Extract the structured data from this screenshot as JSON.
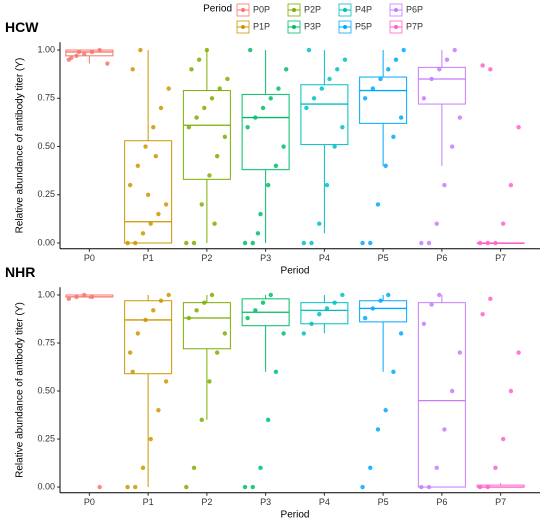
{
  "legend": {
    "title": "Period",
    "labels": [
      "P0P",
      "P1P",
      "P2P",
      "P3P",
      "P4P",
      "P5P",
      "P6P",
      "P7P"
    ],
    "colors": [
      "#F8766D",
      "#CD9600",
      "#7CAE00",
      "#00BE67",
      "#00BFC4",
      "#00A9FF",
      "#C77CFF",
      "#FF61CC"
    ]
  },
  "chart_data": [
    {
      "type": "box",
      "title": "HCW",
      "x_label": "Period",
      "y_label": "Relative abundance of antibody titer (Y)",
      "categories": [
        "P0",
        "P1",
        "P2",
        "P3",
        "P4",
        "P5",
        "P6",
        "P7"
      ],
      "ylim": [
        -0.03,
        1.04
      ],
      "yticks": [
        {
          "value": 0,
          "label": "0.00"
        },
        {
          "value": 0.25,
          "label": "0.25"
        },
        {
          "value": 0.5,
          "label": "0.50"
        },
        {
          "value": 0.75,
          "label": "0.75"
        },
        {
          "value": 1,
          "label": "1.00"
        }
      ],
      "boxes": [
        {
          "min": 0.93,
          "q1": 0.97,
          "median": 0.99,
          "q3": 1.0,
          "max": 1.0
        },
        {
          "min": 0,
          "q1": 0,
          "median": 0.11,
          "q3": 0.53,
          "max": 1.0
        },
        {
          "min": 0,
          "q1": 0.33,
          "median": 0.61,
          "q3": 0.79,
          "max": 1.0
        },
        {
          "min": 0,
          "q1": 0.38,
          "median": 0.65,
          "q3": 0.77,
          "max": 1.0
        },
        {
          "min": 0.05,
          "q1": 0.51,
          "median": 0.72,
          "q3": 0.82,
          "max": 1.0
        },
        {
          "min": 0.4,
          "q1": 0.62,
          "median": 0.79,
          "q3": 0.86,
          "max": 1.0
        },
        {
          "min": 0.4,
          "q1": 0.72,
          "median": 0.85,
          "q3": 0.91,
          "max": 1.0
        },
        {
          "min": 0,
          "q1": 0,
          "median": 0,
          "q3": 0,
          "max": 0
        }
      ],
      "points": [
        [
          0.95,
          0.97,
          0.98,
          0.99,
          1.0,
          0.93,
          0.96,
          0.99
        ],
        [
          0,
          0,
          0.05,
          0.1,
          0.15,
          0.2,
          0.3,
          0.4,
          0.5,
          0.6,
          0.7,
          0.8,
          0.9,
          1.0,
          0.25,
          0.45
        ],
        [
          0,
          0,
          0.2,
          0.35,
          0.45,
          0.55,
          0.6,
          0.65,
          0.7,
          0.75,
          0.8,
          0.85,
          0.9,
          0.95,
          1.0,
          0.1
        ],
        [
          0,
          0,
          0.15,
          0.3,
          0.4,
          0.5,
          0.6,
          0.65,
          0.7,
          0.75,
          0.8,
          0.9,
          1.0,
          0.05
        ],
        [
          0,
          0,
          0.1,
          0.3,
          0.5,
          0.6,
          0.7,
          0.75,
          0.8,
          0.85,
          0.9,
          0.95,
          1.0
        ],
        [
          0,
          0,
          0.2,
          0.4,
          0.55,
          0.65,
          0.75,
          0.8,
          0.85,
          0.9,
          0.95,
          1.0
        ],
        [
          0,
          0,
          0.1,
          0.3,
          0.5,
          0.65,
          0.75,
          0.85,
          0.9,
          0.95,
          1.0
        ],
        [
          0,
          0,
          0,
          0.1,
          0.3,
          0.6,
          0.92,
          0.9
        ]
      ]
    },
    {
      "type": "box",
      "title": "NHR",
      "x_label": "Period",
      "y_label": "Relative abundance of antibody titer (Y)",
      "categories": [
        "P0",
        "P1",
        "P2",
        "P3",
        "P4",
        "P5",
        "P6",
        "P7"
      ],
      "ylim": [
        -0.03,
        1.04
      ],
      "yticks": [
        {
          "value": 0,
          "label": "0.00"
        },
        {
          "value": 0.25,
          "label": "0.25"
        },
        {
          "value": 0.5,
          "label": "0.50"
        },
        {
          "value": 0.75,
          "label": "0.75"
        },
        {
          "value": 1,
          "label": "1.00"
        }
      ],
      "boxes": [
        {
          "min": 0.98,
          "q1": 0.99,
          "median": 0.99,
          "q3": 1.0,
          "max": 1.0
        },
        {
          "min": 0,
          "q1": 0.59,
          "median": 0.87,
          "q3": 0.97,
          "max": 1.0
        },
        {
          "min": 0.35,
          "q1": 0.72,
          "median": 0.88,
          "q3": 0.96,
          "max": 1.0
        },
        {
          "min": 0.6,
          "q1": 0.84,
          "median": 0.91,
          "q3": 0.98,
          "max": 1.0
        },
        {
          "min": 0.8,
          "q1": 0.85,
          "median": 0.92,
          "q3": 0.96,
          "max": 1.0
        },
        {
          "min": 0.6,
          "q1": 0.86,
          "median": 0.93,
          "q3": 0.97,
          "max": 1.0
        },
        {
          "min": 0,
          "q1": 0,
          "median": 0.45,
          "q3": 0.96,
          "max": 1.0
        },
        {
          "min": 0,
          "q1": 0,
          "median": 0,
          "q3": 0.01,
          "max": 0.02
        }
      ],
      "points": [
        [
          0.98,
          0.99,
          1.0,
          0.99,
          0
        ],
        [
          0,
          0,
          0.1,
          0.25,
          0.4,
          0.55,
          0.7,
          0.8,
          0.87,
          0.92,
          0.97,
          1.0,
          0.6
        ],
        [
          0,
          0.1,
          0.35,
          0.55,
          0.7,
          0.8,
          0.88,
          0.92,
          0.96,
          1.0
        ],
        [
          0,
          0,
          0.1,
          0.35,
          0.6,
          0.8,
          0.88,
          0.92,
          0.96,
          1.0
        ],
        [
          0.8,
          0.85,
          0.9,
          0.93,
          0.96,
          1.0
        ],
        [
          0,
          0.1,
          0.3,
          0.4,
          0.6,
          0.8,
          0.88,
          0.93,
          0.97,
          1.0
        ],
        [
          0,
          0,
          0.1,
          0.3,
          0.5,
          0.7,
          0.85,
          0.95,
          1.0
        ],
        [
          0,
          0,
          0.1,
          0.25,
          0.5,
          0.7,
          0.9,
          0.98
        ]
      ]
    }
  ]
}
